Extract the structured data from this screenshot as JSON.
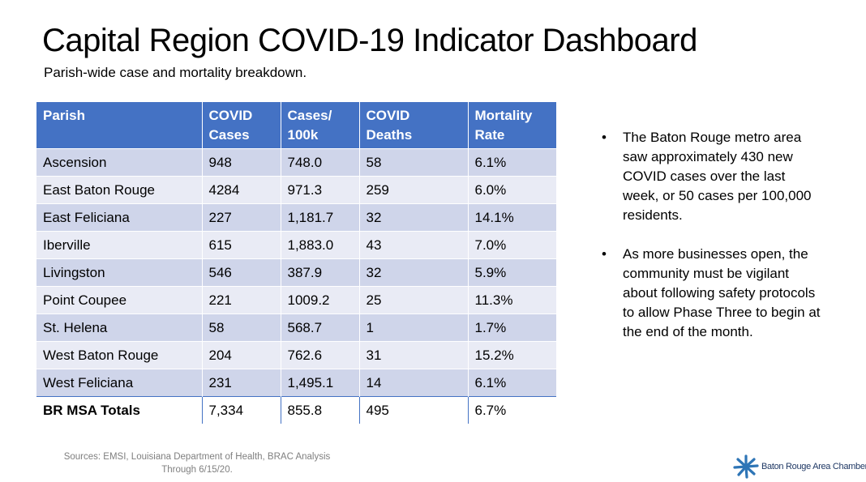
{
  "title": "Capital Region COVID-19 Indicator Dashboard",
  "subtitle": "Parish-wide case and mortality breakdown.",
  "table": {
    "headers": [
      [
        "Parish",
        ""
      ],
      [
        "COVID",
        "Cases"
      ],
      [
        "Cases/",
        "100k"
      ],
      [
        "COVID",
        "Deaths"
      ],
      [
        "Mortality",
        "Rate"
      ]
    ],
    "rows": [
      [
        "Ascension",
        "948",
        "748.0",
        "58",
        "6.1%"
      ],
      [
        "East Baton Rouge",
        "4284",
        "971.3",
        "259",
        "6.0%"
      ],
      [
        "East Feliciana",
        "227",
        "1,181.7",
        "32",
        "14.1%"
      ],
      [
        "Iberville",
        "615",
        "1,883.0",
        "43",
        "7.0%"
      ],
      [
        "Livingston",
        "546",
        "387.9",
        "32",
        "5.9%"
      ],
      [
        "Point Coupee",
        "221",
        "1009.2",
        "25",
        "11.3%"
      ],
      [
        "St. Helena",
        "58",
        "568.7",
        "1",
        "1.7%"
      ],
      [
        "West Baton Rouge",
        "204",
        "762.6",
        "31",
        "15.2%"
      ],
      [
        "West Feliciana",
        "231",
        "1,495.1",
        "14",
        "6.1%"
      ]
    ],
    "totals": [
      "BR MSA Totals",
      "7,334",
      "855.8",
      "495",
      "6.7%"
    ]
  },
  "bullets": [
    "The Baton Rouge metro area saw approximately 430 new COVID cases over the last week, or 50 cases per 100,000 residents.",
    "As more businesses open, the community must be vigilant about following safety protocols to allow Phase Three to begin at the end of the month."
  ],
  "bullet_glyph": "•",
  "sources": {
    "line1": "Sources: EMSI, Louisiana Department of Health, BRAC Analysis",
    "line2": "Through 6/15/20."
  },
  "logo": {
    "text": "Baton Rouge Area Chamber.",
    "icon": "starburst-icon",
    "color": "#2e75b6"
  },
  "colors": {
    "header_bg": "#4472c4",
    "row_dark": "#cfd5ea",
    "row_light": "#e9ebf5"
  }
}
